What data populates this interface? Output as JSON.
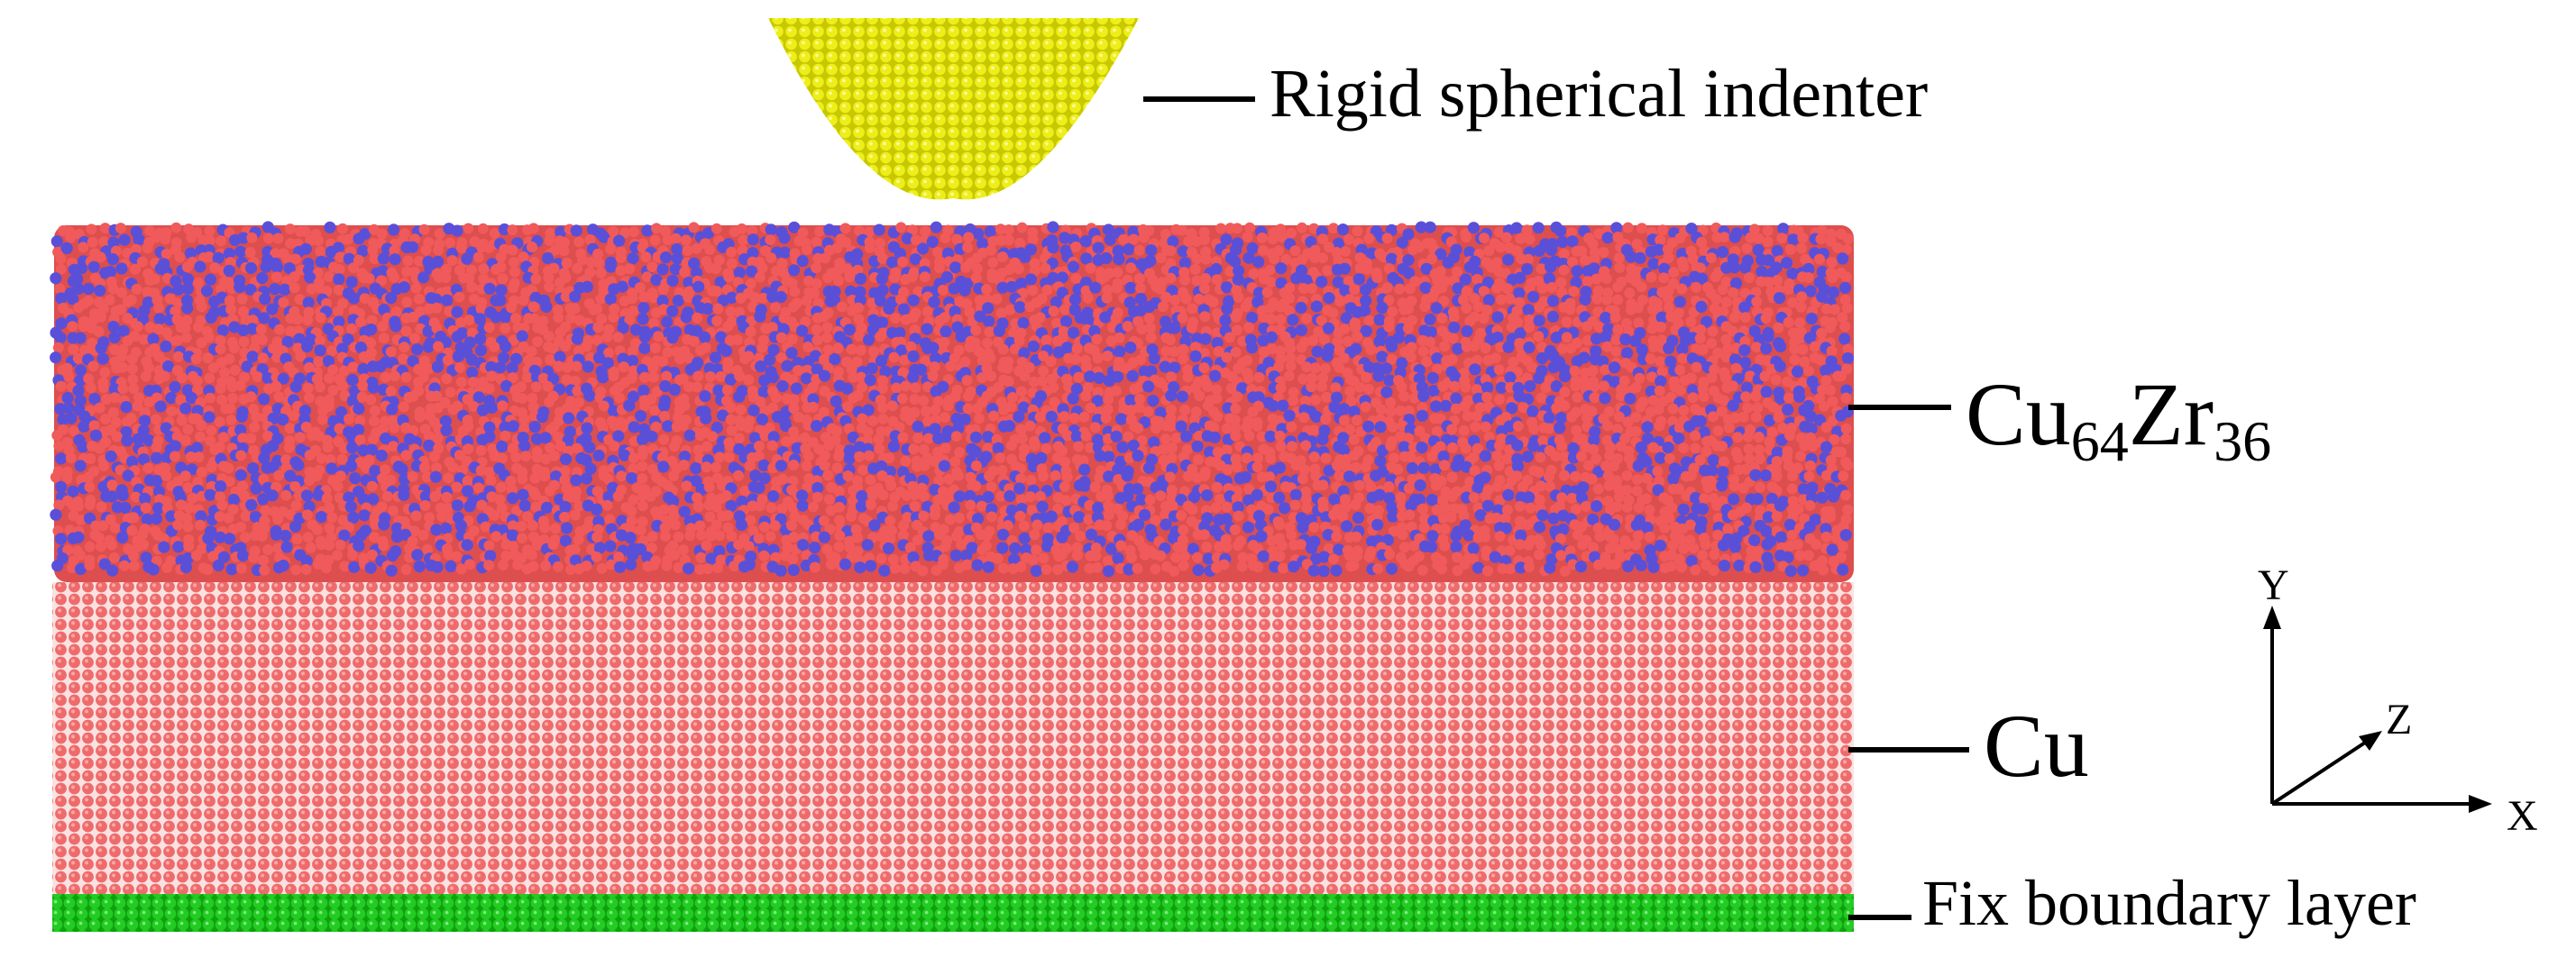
{
  "labels": {
    "indenter": "Rigid spherical indenter",
    "cuzr_base": "Cu",
    "cuzr_sub1": "64",
    "cuzr_mid": "Zr",
    "cuzr_sub2": "36",
    "cu": "Cu",
    "fix_layer": "Fix boundary layer"
  },
  "axes": {
    "y": "Y",
    "z": "Z",
    "x": "X"
  },
  "colors": {
    "indenter_atom": "#e6e600",
    "cu_atom": "#f05a5a",
    "zr_atom": "#5a50d8",
    "cu_lattice": "#f07070",
    "fixed_atom": "#1ec81e",
    "leader_line": "#000000"
  }
}
